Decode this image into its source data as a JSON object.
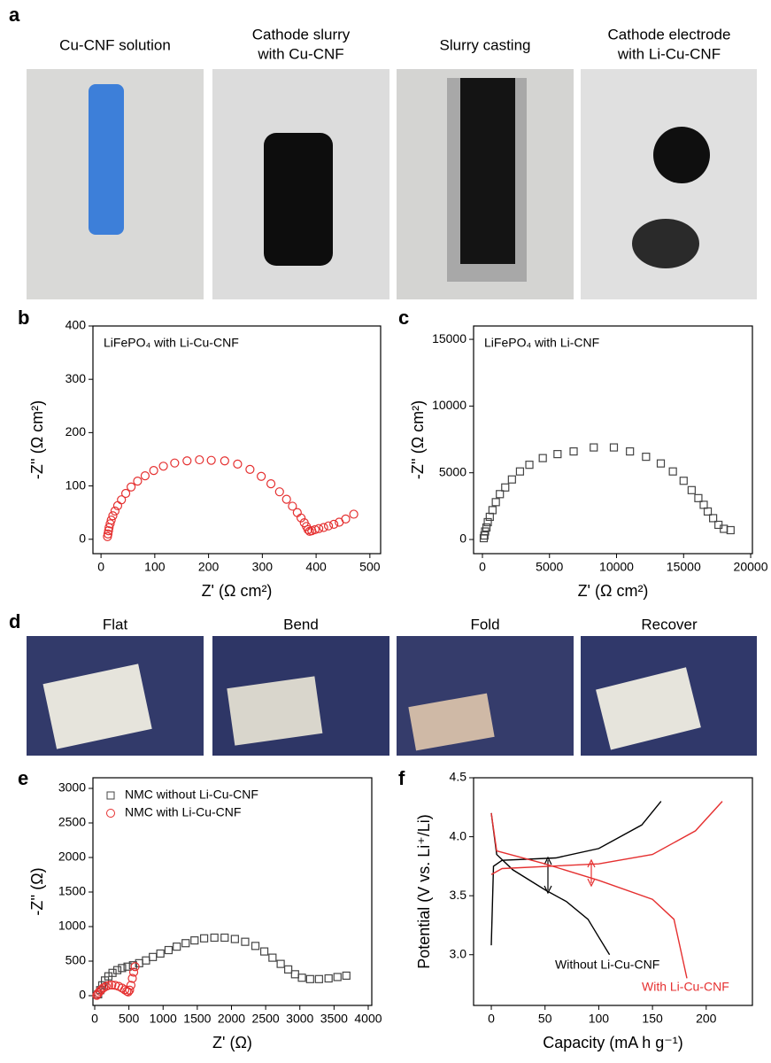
{
  "figure": {
    "panel_labels": [
      "a",
      "b",
      "c",
      "d",
      "e",
      "f"
    ],
    "photos_a": [
      [
        "Cu-CNF solution"
      ],
      [
        "Cathode slurry",
        "with Cu-CNF"
      ],
      [
        "Slurry casting"
      ],
      [
        "Cathode electrode",
        "with Li-Cu-CNF"
      ]
    ],
    "photos_d": [
      "Flat",
      "Bend",
      "Fold",
      "Recover"
    ]
  },
  "chart_data": [
    {
      "type": "scatter",
      "title": "LiFePO₄ with Li-Cu-CNF",
      "x_label": "Z' (Ω cm²)",
      "y_label": "-Z'' (Ω cm²)",
      "xlim": [
        -15,
        520
      ],
      "ylim": [
        -27,
        400
      ],
      "xticks": [
        0,
        100,
        200,
        300,
        400,
        500
      ],
      "yticks": [
        0,
        100,
        200,
        300,
        400
      ],
      "series": [
        {
          "color": "#e53030",
          "marker": "circle",
          "x": [
            12,
            13,
            14,
            15,
            17,
            19,
            22,
            26,
            31,
            38,
            46,
            56,
            68,
            82,
            98,
            116,
            137,
            160,
            183,
            205,
            230,
            254,
            277,
            298,
            316,
            332,
            345,
            356,
            365,
            372,
            378,
            382,
            385,
            388,
            392,
            398,
            405,
            414,
            423,
            433,
            443,
            455,
            470
          ],
          "values": [
            5,
            10,
            16,
            22,
            29,
            36,
            44,
            53,
            63,
            74,
            86,
            98,
            109,
            119,
            129,
            137,
            143,
            147,
            149,
            148,
            147,
            141,
            131,
            118,
            104,
            89,
            75,
            62,
            50,
            40,
            31,
            24,
            18,
            15,
            16,
            18,
            20,
            22,
            25,
            28,
            32,
            38,
            47
          ]
        }
      ]
    },
    {
      "type": "scatter",
      "title": "LiFePO₄ with Li-CNF",
      "x_label": "Z' (Ω cm²)",
      "y_label": "-Z'' (Ω cm²)",
      "xlim": [
        -660,
        20130
      ],
      "ylim": [
        -1060,
        16000
      ],
      "xticks": [
        0,
        5000,
        10000,
        15000,
        20000
      ],
      "yticks": [
        0,
        5000,
        10000,
        15000
      ],
      "series": [
        {
          "color": "#444444",
          "marker": "square",
          "x": [
            100,
            150,
            200,
            300,
            400,
            550,
            750,
            1000,
            1300,
            1700,
            2200,
            2800,
            3500,
            4500,
            5600,
            6800,
            8300,
            9800,
            11000,
            12200,
            13300,
            14200,
            15000,
            15600,
            16100,
            16500,
            16800,
            17200,
            17600,
            18000,
            18500
          ],
          "values": [
            100,
            300,
            600,
            900,
            1300,
            1700,
            2200,
            2800,
            3400,
            3900,
            4500,
            5100,
            5600,
            6100,
            6400,
            6600,
            6900,
            6900,
            6600,
            6200,
            5700,
            5100,
            4400,
            3700,
            3100,
            2600,
            2100,
            1600,
            1100,
            800,
            700
          ]
        }
      ]
    },
    {
      "type": "scatter",
      "x_label": "Z' (Ω)",
      "y_label": "-Z'' (Ω)",
      "legend": "upper left",
      "xlim": [
        -26,
        4052
      ],
      "ylim": [
        -141,
        3154
      ],
      "xticks": [
        0,
        500,
        1000,
        1500,
        2000,
        2500,
        3000,
        3500,
        4000
      ],
      "yticks": [
        0,
        500,
        1000,
        1500,
        2000,
        2500,
        3000
      ],
      "series": [
        {
          "name": "NMC without Li-Cu-CNF",
          "color": "#444444",
          "marker": "square",
          "x": [
            50,
            80,
            110,
            150,
            200,
            260,
            330,
            400,
            480,
            560,
            650,
            750,
            850,
            960,
            1080,
            1200,
            1330,
            1460,
            1600,
            1750,
            1900,
            2050,
            2200,
            2350,
            2480,
            2600,
            2720,
            2830,
            2930,
            3030,
            3150,
            3280,
            3420,
            3550,
            3680
          ],
          "values": [
            20,
            80,
            150,
            220,
            280,
            330,
            370,
            400,
            420,
            440,
            470,
            510,
            560,
            610,
            660,
            710,
            760,
            800,
            830,
            840,
            840,
            820,
            780,
            720,
            640,
            550,
            460,
            380,
            310,
            260,
            240,
            240,
            250,
            270,
            290
          ]
        },
        {
          "name": "NMC with Li-Cu-CNF",
          "color": "#e53030",
          "marker": "circle",
          "x": [
            30,
            40,
            55,
            75,
            100,
            130,
            165,
            205,
            250,
            300,
            350,
            400,
            440,
            470,
            490,
            510,
            530,
            550,
            570,
            590
          ],
          "values": [
            5,
            20,
            40,
            65,
            90,
            115,
            135,
            150,
            155,
            150,
            135,
            110,
            85,
            65,
            55,
            80,
            150,
            250,
            340,
            420
          ]
        }
      ]
    },
    {
      "type": "line",
      "x_label": "Capacity (mA h g⁻¹)",
      "y_label": "Potential (V vs. Li⁺/Li)",
      "xlim": [
        -16.5,
        243
      ],
      "ylim": [
        2.57,
        4.5
      ],
      "xticks": [
        0,
        50,
        100,
        150,
        200
      ],
      "yticks": [
        {
          "value": 3,
          "label": "3.0"
        },
        3.5,
        {
          "value": 4,
          "label": "4.0"
        },
        4.5
      ],
      "annotations": [
        {
          "text": "Without Li-Cu-CNF",
          "color": "#000000"
        },
        {
          "text": "With Li-Cu-CNF",
          "color": "#e53030"
        }
      ],
      "series": [
        {
          "color": "#000000",
          "x": [
            0,
            5,
            20,
            50,
            70,
            90,
            100,
            110
          ],
          "values": [
            4.2,
            3.85,
            3.72,
            3.55,
            3.45,
            3.3,
            3.15,
            3.0
          ]
        },
        {
          "color": "#000000",
          "x": [
            0,
            2,
            10,
            60,
            100,
            140,
            158
          ],
          "values": [
            3.08,
            3.75,
            3.8,
            3.82,
            3.9,
            4.1,
            4.3
          ]
        },
        {
          "color": "#e53030",
          "x": [
            0,
            5,
            50,
            100,
            150,
            170,
            182
          ],
          "values": [
            4.2,
            3.88,
            3.77,
            3.63,
            3.47,
            3.3,
            2.8
          ]
        },
        {
          "color": "#e53030",
          "x": [
            0,
            10,
            100,
            150,
            190,
            215
          ],
          "values": [
            3.68,
            3.73,
            3.77,
            3.85,
            4.05,
            4.3
          ]
        }
      ]
    }
  ]
}
